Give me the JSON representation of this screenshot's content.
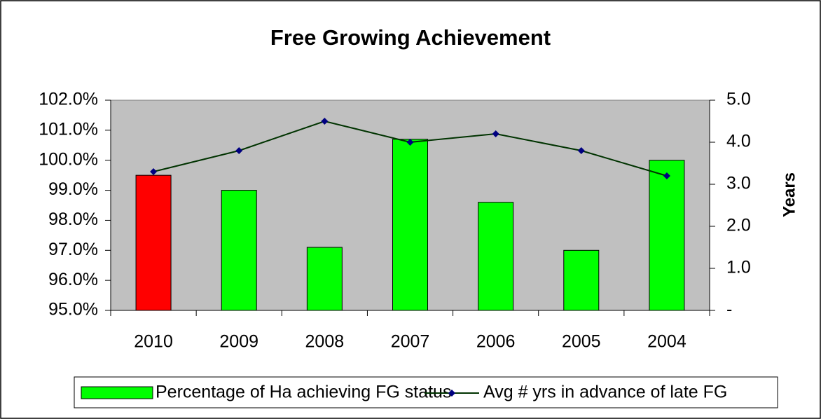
{
  "chart_data": {
    "type": "bar-line",
    "title": "Free Growing Achievement",
    "categories": [
      "2010",
      "2009",
      "2008",
      "2007",
      "2006",
      "2005",
      "2004"
    ],
    "series": [
      {
        "name": "Percentage of Ha achieving FG status",
        "type": "bar",
        "color": "#00ff00",
        "colors": [
          "#ff0000",
          "#00ff00",
          "#00ff00",
          "#00ff00",
          "#00ff00",
          "#00ff00",
          "#00ff00"
        ],
        "values": [
          99.5,
          99.0,
          97.1,
          100.7,
          98.6,
          97.0,
          100.0
        ]
      },
      {
        "name": "Avg # yrs in advance of late FG",
        "type": "line",
        "axis": "y2",
        "color": "#003300",
        "marker_color": "#000080",
        "values": [
          3.3,
          3.8,
          4.5,
          4.0,
          4.2,
          3.8,
          3.2
        ]
      }
    ],
    "ylim": [
      95,
      102
    ],
    "yticks": [
      {
        "value": 95,
        "label": "95.0%"
      },
      {
        "value": 96,
        "label": "96.0%"
      },
      {
        "value": 97,
        "label": "97.0%"
      },
      {
        "value": 98,
        "label": "98.0%"
      },
      {
        "value": 99,
        "label": "99.0%"
      },
      {
        "value": 100,
        "label": "100.0%"
      },
      {
        "value": 101,
        "label": "101.0%"
      },
      {
        "value": 102,
        "label": "102.0%"
      }
    ],
    "y2lim": [
      0,
      5
    ],
    "y2ticks": [
      {
        "value": 0,
        "label": "-"
      },
      {
        "value": 1,
        "label": "1.0"
      },
      {
        "value": 2,
        "label": "2.0"
      },
      {
        "value": 3,
        "label": "3.0"
      },
      {
        "value": 4,
        "label": "4.0"
      },
      {
        "value": 5,
        "label": "5.0"
      }
    ],
    "y2label": "Years",
    "plot_background": "#c0c0c0",
    "legend": "bottom"
  }
}
